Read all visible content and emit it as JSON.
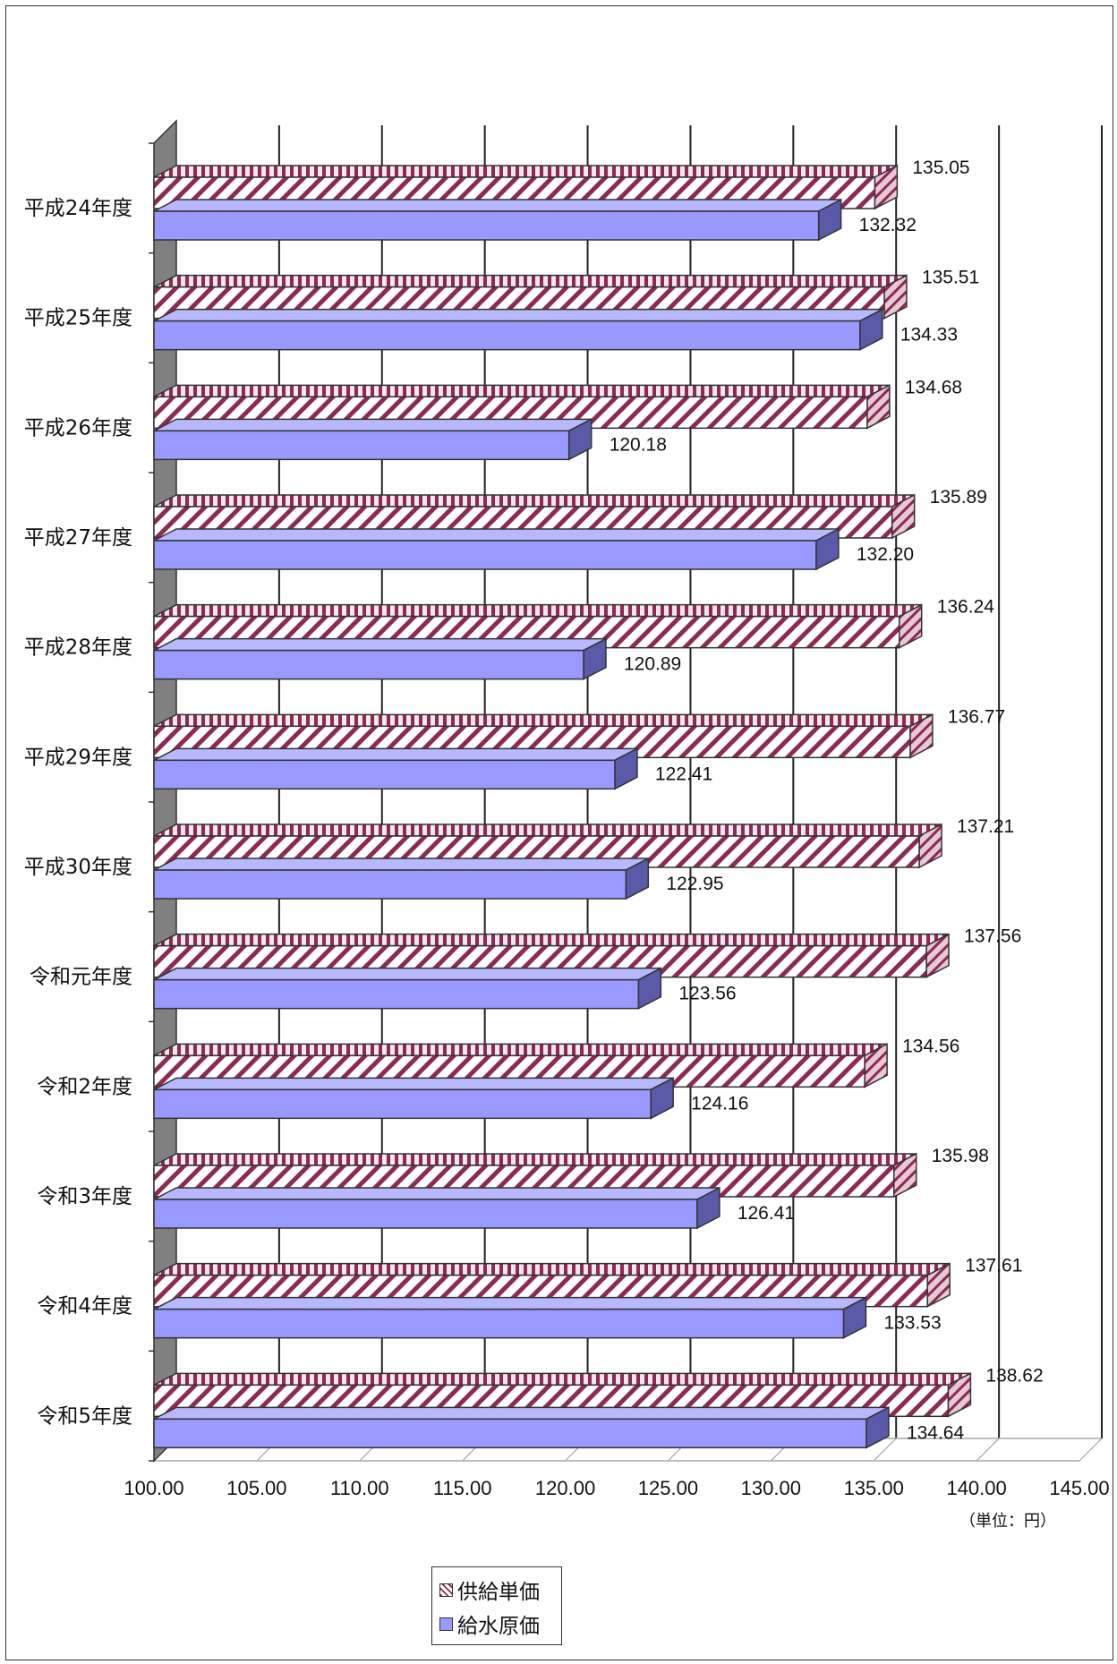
{
  "chart_data": {
    "type": "bar",
    "orientation": "horizontal",
    "categories": [
      "平成24年度",
      "平成25年度",
      "平成26年度",
      "平成27年度",
      "平成28年度",
      "平成29年度",
      "平成30年度",
      "令和元年度",
      "令和2年度",
      "令和3年度",
      "令和4年度",
      "令和5年度"
    ],
    "series": [
      {
        "name": "供給単価",
        "values": [
          135.05,
          135.51,
          134.68,
          135.89,
          136.24,
          136.77,
          137.21,
          137.56,
          134.56,
          135.98,
          137.61,
          138.62
        ]
      },
      {
        "name": "給水原価",
        "values": [
          132.32,
          134.33,
          120.18,
          132.2,
          120.89,
          122.41,
          122.95,
          123.56,
          124.16,
          126.41,
          133.53,
          134.64
        ]
      }
    ],
    "value_labels": [
      [
        "135.05",
        "135.51",
        "134.68",
        "135.89",
        "136.24",
        "136.77",
        "137.21",
        "137.56",
        "134.56",
        "135.98",
        "137.61",
        "138.62"
      ],
      [
        "132.32",
        "134.33",
        "120.18",
        "132.20",
        "120.89",
        "122.41",
        "122.95",
        "123.56",
        "124.16",
        "126.41",
        "133.53",
        "134.64"
      ]
    ],
    "x_ticks": [
      "100.00",
      "105.00",
      "110.00",
      "115.00",
      "120.00",
      "125.00",
      "130.00",
      "135.00",
      "140.00",
      "145.00"
    ],
    "xlim": [
      100,
      145
    ],
    "unit_label": "（単位：円）",
    "grid": true,
    "legend_position": "bottom",
    "colors": {
      "supply_fill": "#ffffff",
      "supply_hatch": "#8b2a52",
      "cost_fill": "#9999ff",
      "cost_side": "#5a5aa8",
      "wall": "#808080",
      "edge": "#333333"
    }
  },
  "legend": {
    "items": [
      {
        "label": "供給単価",
        "icon": "hatch-swatch"
      },
      {
        "label": "給水原価",
        "icon": "blue-swatch"
      }
    ]
  }
}
